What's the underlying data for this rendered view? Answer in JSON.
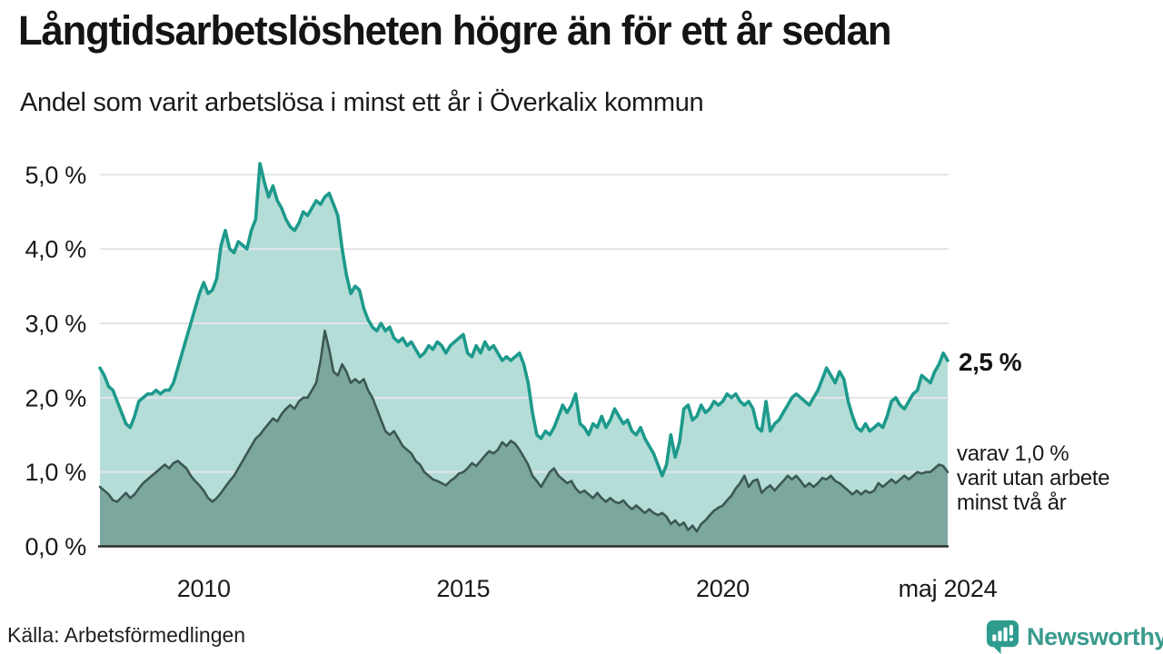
{
  "header": {
    "title": "Långtidsarbetslösheten högre än för ett år sedan",
    "subtitle": "Andel som varit arbetslösa i minst ett år i Överkalix kommun"
  },
  "annotations": {
    "latest_value_label": "2,5 %",
    "secondary_lines": [
      "varav 1,0 %",
      "varit utan arbete",
      "minst två år"
    ]
  },
  "footer": {
    "source": "Källa: Arbetsförmedlingen",
    "brand": "Newsworthy"
  },
  "colors": {
    "primary_line": "#1d9a8c",
    "primary_fill": "#b5ddd7",
    "secondary_line": "#3c5852",
    "secondary_fill": "#7ba79e",
    "gridline": "#e2e4e8",
    "axis": "#2e2e2e",
    "text": "#1a1a1a",
    "brand_teal": "#2d9c8e"
  },
  "chart_data": {
    "type": "area",
    "unit": "percent",
    "frequency": "monthly",
    "x_start": "2008-01",
    "x_end": "2024-05",
    "ylim": [
      0,
      5.4
    ],
    "grid": true,
    "legend_position": "right-annotations",
    "xticks": [
      {
        "label": "2010",
        "index": 24
      },
      {
        "label": "2015",
        "index": 84
      },
      {
        "label": "2020",
        "index": 144
      },
      {
        "label": "maj 2024",
        "index": 196
      }
    ],
    "yticks": [
      {
        "label": "0,0 %",
        "value": 0
      },
      {
        "label": "1,0 %",
        "value": 1
      },
      {
        "label": "2,0 %",
        "value": 2
      },
      {
        "label": "3,0 %",
        "value": 3
      },
      {
        "label": "4,0 %",
        "value": 4
      },
      {
        "label": "5,0 %",
        "value": 5
      }
    ],
    "series": [
      {
        "name": "Andel arbetslösa i minst ett år",
        "end_value": 2.5,
        "line_color": "#1d9a8c",
        "fill_color": "#b5ddd7",
        "values": [
          2.4,
          2.3,
          2.15,
          2.1,
          1.95,
          1.8,
          1.65,
          1.6,
          1.75,
          1.95,
          2.0,
          2.05,
          2.05,
          2.1,
          2.05,
          2.1,
          2.1,
          2.2,
          2.4,
          2.6,
          2.8,
          3.0,
          3.2,
          3.4,
          3.55,
          3.4,
          3.45,
          3.6,
          4.05,
          4.25,
          4.0,
          3.95,
          4.1,
          4.05,
          4.0,
          4.25,
          4.4,
          5.15,
          4.9,
          4.7,
          4.85,
          4.65,
          4.55,
          4.4,
          4.3,
          4.25,
          4.35,
          4.5,
          4.45,
          4.55,
          4.65,
          4.6,
          4.7,
          4.75,
          4.6,
          4.45,
          4.0,
          3.65,
          3.4,
          3.5,
          3.45,
          3.2,
          3.05,
          2.95,
          2.9,
          3.0,
          2.9,
          2.95,
          2.8,
          2.75,
          2.8,
          2.7,
          2.75,
          2.65,
          2.55,
          2.6,
          2.7,
          2.65,
          2.75,
          2.7,
          2.6,
          2.7,
          2.75,
          2.8,
          2.85,
          2.6,
          2.55,
          2.7,
          2.6,
          2.75,
          2.65,
          2.7,
          2.6,
          2.5,
          2.55,
          2.5,
          2.55,
          2.6,
          2.45,
          2.2,
          1.8,
          1.5,
          1.45,
          1.55,
          1.5,
          1.6,
          1.75,
          1.9,
          1.8,
          1.9,
          2.05,
          1.65,
          1.6,
          1.5,
          1.65,
          1.6,
          1.75,
          1.6,
          1.7,
          1.85,
          1.75,
          1.65,
          1.7,
          1.55,
          1.5,
          1.6,
          1.45,
          1.35,
          1.25,
          1.1,
          0.95,
          1.1,
          1.5,
          1.2,
          1.4,
          1.85,
          1.9,
          1.7,
          1.75,
          1.9,
          1.8,
          1.85,
          1.95,
          1.9,
          1.95,
          2.05,
          2.0,
          2.05,
          1.95,
          1.9,
          1.95,
          1.85,
          1.6,
          1.55,
          1.95,
          1.55,
          1.65,
          1.7,
          1.8,
          1.9,
          2.0,
          2.05,
          2.0,
          1.95,
          1.9,
          2.0,
          2.1,
          2.25,
          2.4,
          2.3,
          2.2,
          2.35,
          2.25,
          1.95,
          1.75,
          1.6,
          1.55,
          1.65,
          1.55,
          1.6,
          1.65,
          1.6,
          1.75,
          1.95,
          2.0,
          1.9,
          1.85,
          1.95,
          2.05,
          2.1,
          2.3,
          2.25,
          2.2,
          2.35,
          2.45,
          2.6,
          2.5
        ]
      },
      {
        "name": "varav utan arbete minst två år",
        "end_value": 1.0,
        "line_color": "#3c5852",
        "fill_color": "#7ba79e",
        "values": [
          0.8,
          0.75,
          0.7,
          0.62,
          0.6,
          0.66,
          0.72,
          0.65,
          0.7,
          0.78,
          0.85,
          0.9,
          0.95,
          1.0,
          1.05,
          1.1,
          1.05,
          1.12,
          1.15,
          1.1,
          1.05,
          0.95,
          0.88,
          0.82,
          0.75,
          0.65,
          0.6,
          0.65,
          0.72,
          0.8,
          0.88,
          0.95,
          1.05,
          1.15,
          1.25,
          1.35,
          1.45,
          1.5,
          1.58,
          1.65,
          1.72,
          1.68,
          1.78,
          1.85,
          1.9,
          1.85,
          1.95,
          2.0,
          2.0,
          2.1,
          2.2,
          2.5,
          2.9,
          2.65,
          2.35,
          2.3,
          2.45,
          2.35,
          2.2,
          2.25,
          2.2,
          2.25,
          2.1,
          2.0,
          1.85,
          1.7,
          1.55,
          1.5,
          1.55,
          1.45,
          1.35,
          1.3,
          1.25,
          1.15,
          1.1,
          1.0,
          0.95,
          0.9,
          0.88,
          0.85,
          0.82,
          0.88,
          0.92,
          0.98,
          1.0,
          1.05,
          1.12,
          1.08,
          1.15,
          1.22,
          1.28,
          1.25,
          1.3,
          1.4,
          1.35,
          1.42,
          1.38,
          1.3,
          1.2,
          1.1,
          0.95,
          0.88,
          0.8,
          0.9,
          1.0,
          1.05,
          0.95,
          0.9,
          0.85,
          0.88,
          0.78,
          0.72,
          0.75,
          0.7,
          0.65,
          0.72,
          0.65,
          0.6,
          0.65,
          0.6,
          0.58,
          0.62,
          0.55,
          0.5,
          0.55,
          0.5,
          0.45,
          0.5,
          0.45,
          0.42,
          0.45,
          0.4,
          0.3,
          0.35,
          0.28,
          0.32,
          0.22,
          0.28,
          0.2,
          0.3,
          0.35,
          0.42,
          0.48,
          0.52,
          0.55,
          0.62,
          0.68,
          0.78,
          0.85,
          0.95,
          0.8,
          0.88,
          0.9,
          0.72,
          0.78,
          0.82,
          0.75,
          0.82,
          0.88,
          0.95,
          0.9,
          0.95,
          0.88,
          0.8,
          0.85,
          0.8,
          0.85,
          0.92,
          0.9,
          0.95,
          0.88,
          0.85,
          0.8,
          0.75,
          0.7,
          0.75,
          0.7,
          0.75,
          0.72,
          0.75,
          0.85,
          0.8,
          0.85,
          0.9,
          0.85,
          0.9,
          0.95,
          0.9,
          0.95,
          1.0,
          0.98,
          1.0,
          1.0,
          1.05,
          1.1,
          1.08,
          1.0
        ]
      }
    ]
  }
}
